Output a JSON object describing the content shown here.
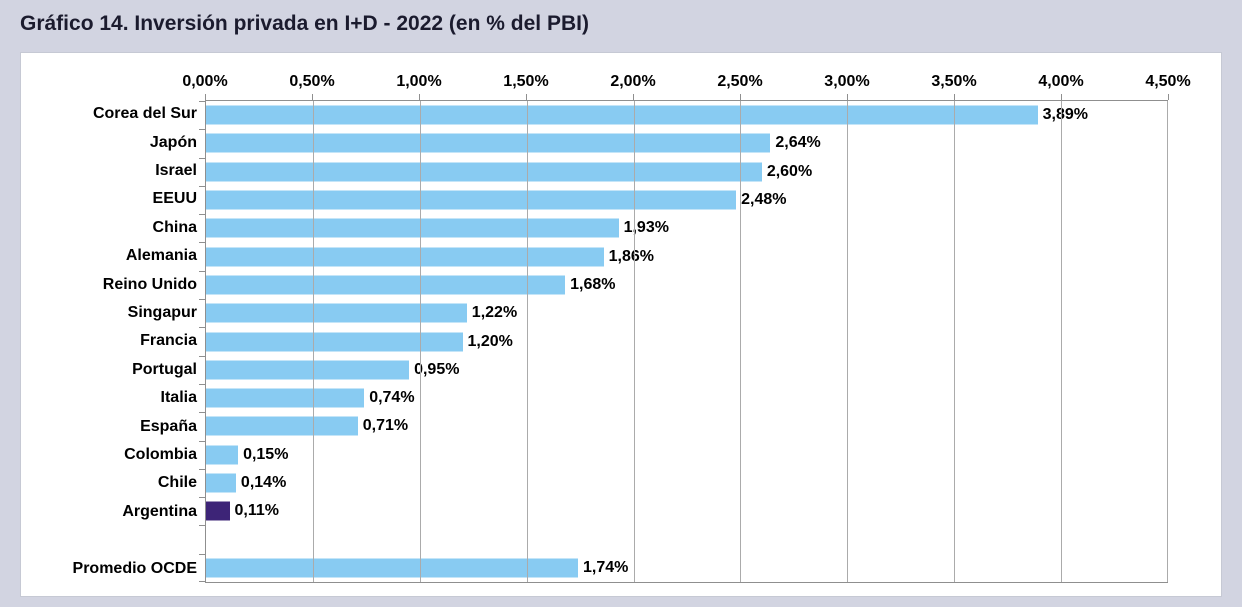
{
  "page": {
    "background_color": "#d2d4e1",
    "panel_color": "#ffffff"
  },
  "chart_data": {
    "type": "bar",
    "orientation": "horizontal",
    "title": "Gráfico 14. Inversión privada en I+D - 2022 (en % del PBI)",
    "xlabel": "",
    "ylabel": "",
    "xlim": [
      0,
      4.5
    ],
    "x_tick_labels": [
      "0,00%",
      "0,50%",
      "1,00%",
      "1,50%",
      "2,00%",
      "2,50%",
      "3,00%",
      "3,50%",
      "4,00%",
      "4,50%"
    ],
    "grid": true,
    "legend": null,
    "axis_position": "top",
    "categories": [
      "Corea del Sur",
      "Japón",
      "Israel",
      "EEUU",
      "China",
      "Alemania",
      "Reino Unido",
      "Singapur",
      "Francia",
      "Portugal",
      "Italia",
      "España",
      "Colombia",
      "Chile",
      "Argentina",
      "Promedio OCDE"
    ],
    "values": [
      3.89,
      2.64,
      2.6,
      2.48,
      1.93,
      1.86,
      1.68,
      1.22,
      1.2,
      0.95,
      0.74,
      0.71,
      0.15,
      0.14,
      0.11,
      1.74
    ],
    "value_labels": [
      "3,89%",
      "2,64%",
      "2,60%",
      "2,48%",
      "1,93%",
      "1,86%",
      "1,68%",
      "1,22%",
      "1,20%",
      "0,95%",
      "0,74%",
      "0,71%",
      "0,15%",
      "0,14%",
      "0,11%",
      "1,74%"
    ],
    "highlight_index": 14,
    "spacer_before_index": 15,
    "colors": {
      "bar": "#88cbf2",
      "highlight_bar": "#3d2477",
      "gridline": "#ababab",
      "axis": "#8f8f8f",
      "label_text": "#000000",
      "title_text": "#1b1b2e"
    }
  }
}
